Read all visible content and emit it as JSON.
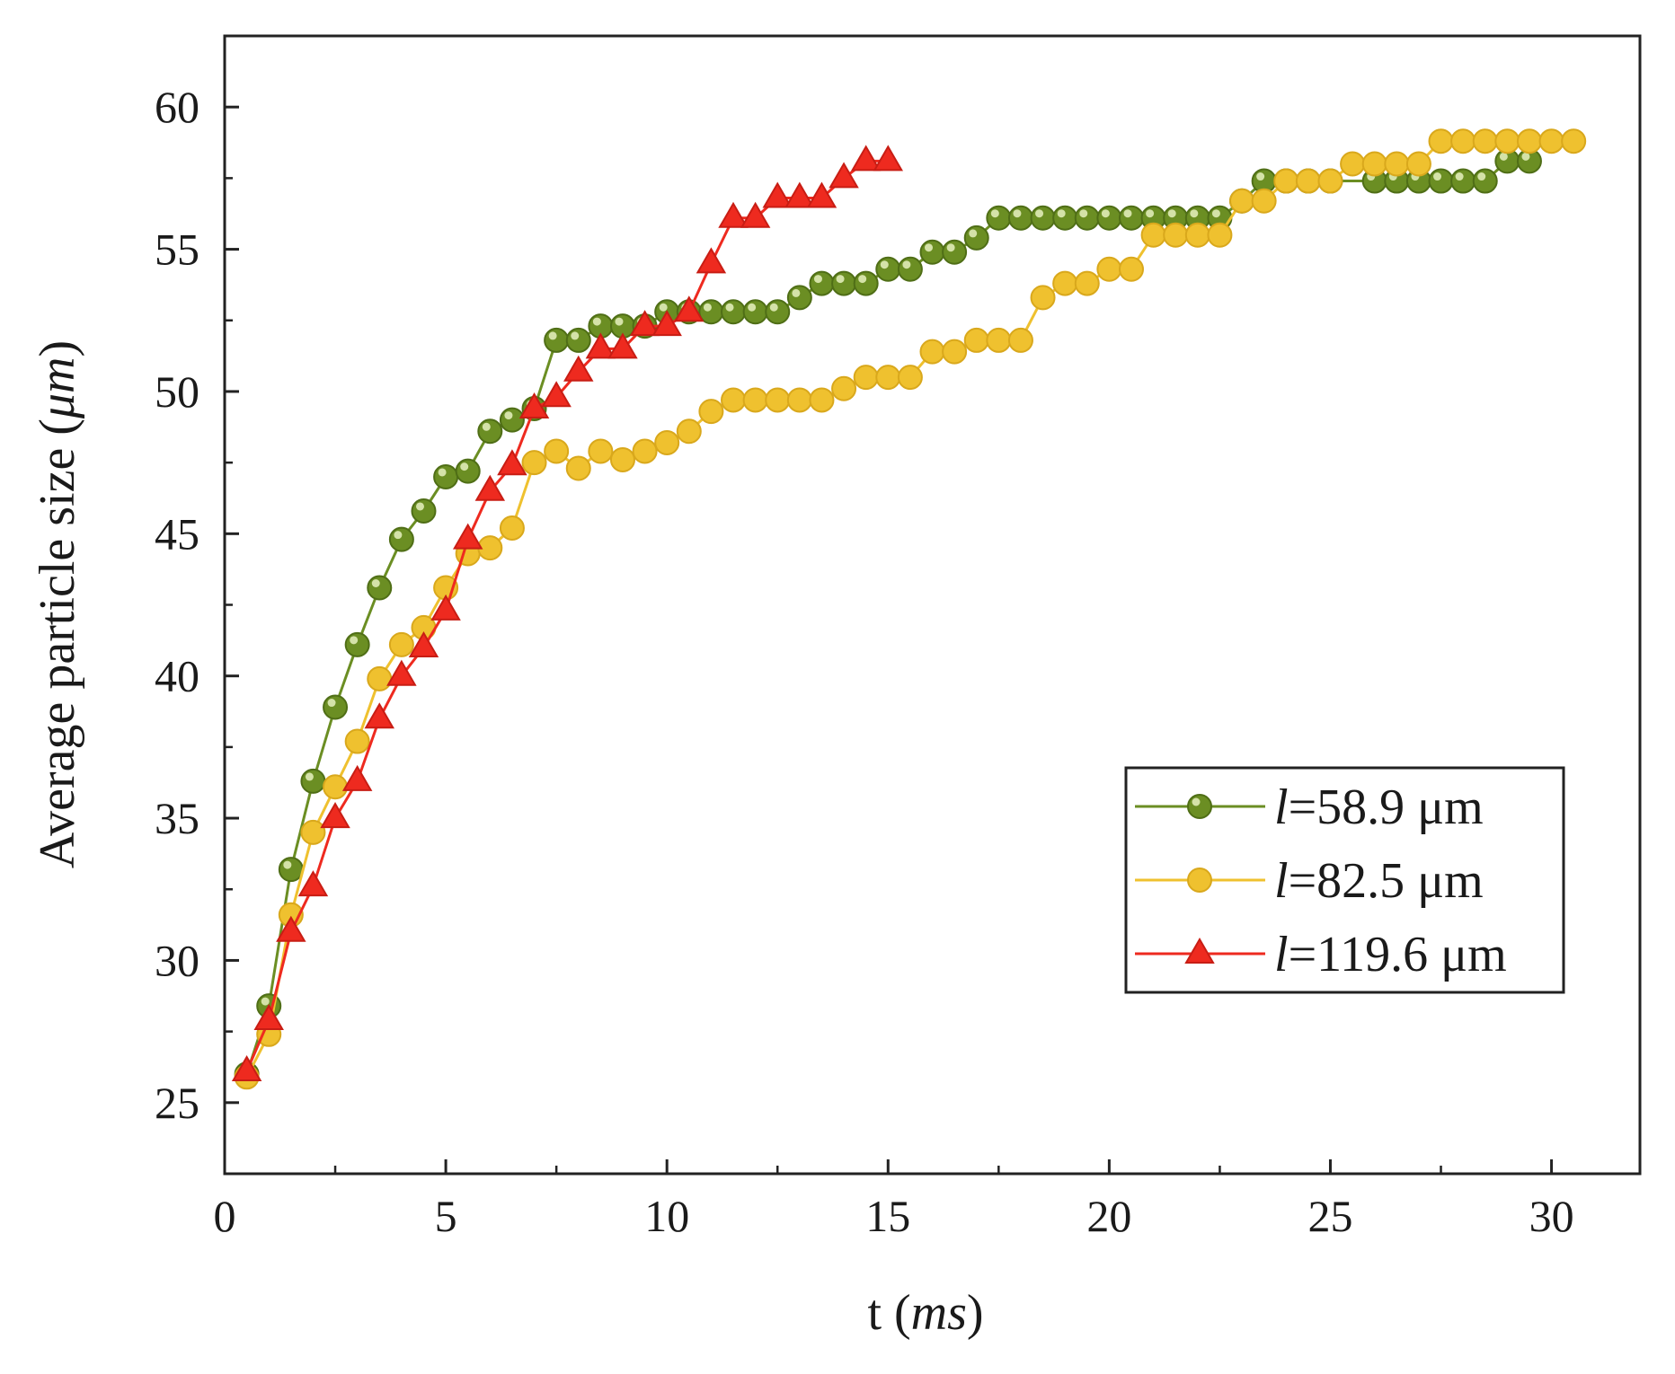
{
  "chart_data": {
    "type": "line",
    "title": "",
    "xlabel": "t (ms)",
    "xlabel_parts": {
      "text": "t (",
      "italic": "ms",
      "close": ")"
    },
    "ylabel": "Average particle size (μm)",
    "ylabel_parts": {
      "text": "Average particle size (",
      "italic": "μm",
      "close": ")"
    },
    "xlim": [
      0,
      32
    ],
    "ylim": [
      22.5,
      62.5
    ],
    "xticks": [
      0,
      5,
      10,
      15,
      20,
      25,
      30
    ],
    "yticks": [
      25,
      30,
      35,
      40,
      45,
      50,
      55,
      60
    ],
    "x_minor_step": 2.5,
    "y_minor_step": 2.5,
    "grid": false,
    "legend_position": "lower-right",
    "series": [
      {
        "name": "l=58.9 μm",
        "legend_prefix": "l",
        "legend_suffix": "=58.9 μm",
        "color": "#6b8e23",
        "marker": "circle",
        "x": [
          0.5,
          1.0,
          1.5,
          2.0,
          2.5,
          3.0,
          3.5,
          4.0,
          4.5,
          5.0,
          5.5,
          6.0,
          6.5,
          7.0,
          7.5,
          8.0,
          8.5,
          9.0,
          9.5,
          10.0,
          10.5,
          11.0,
          11.5,
          12.0,
          12.5,
          13.0,
          13.5,
          14.0,
          14.5,
          15.0,
          15.5,
          16.0,
          16.5,
          17.0,
          17.5,
          18.0,
          18.5,
          19.0,
          19.5,
          20.0,
          20.5,
          21.0,
          21.5,
          22.0,
          22.5,
          23.0,
          23.5,
          24.0,
          24.5,
          25.0,
          26.0,
          26.5,
          27.0,
          27.5,
          28.0,
          28.5,
          29.0,
          29.5
        ],
        "values": [
          26.0,
          28.4,
          33.2,
          36.3,
          38.9,
          41.1,
          43.1,
          44.8,
          45.8,
          47.0,
          47.2,
          48.6,
          49.0,
          49.4,
          51.8,
          51.8,
          52.3,
          52.3,
          52.3,
          52.8,
          52.8,
          52.8,
          52.8,
          52.8,
          52.8,
          53.3,
          53.8,
          53.8,
          53.8,
          54.3,
          54.3,
          54.9,
          54.9,
          55.4,
          56.1,
          56.1,
          56.1,
          56.1,
          56.1,
          56.1,
          56.1,
          56.1,
          56.1,
          56.1,
          56.1,
          56.7,
          57.4,
          57.4,
          57.4,
          57.4,
          57.4,
          57.4,
          57.4,
          57.4,
          57.4,
          57.4,
          58.1,
          58.1
        ]
      },
      {
        "name": "l=82.5 μm",
        "legend_prefix": "l",
        "legend_suffix": "=82.5 μm",
        "color": "#efc12f",
        "marker": "circle",
        "x": [
          0.5,
          1.0,
          1.5,
          2.0,
          2.5,
          3.0,
          3.5,
          4.0,
          4.5,
          5.0,
          5.5,
          6.0,
          6.5,
          7.0,
          7.5,
          8.0,
          8.5,
          9.0,
          9.5,
          10.0,
          10.5,
          11.0,
          11.5,
          12.0,
          12.5,
          13.0,
          13.5,
          14.0,
          14.5,
          15.0,
          15.5,
          16.0,
          16.5,
          17.0,
          17.5,
          18.0,
          18.5,
          19.0,
          19.5,
          20.0,
          20.5,
          21.0,
          21.5,
          22.0,
          22.5,
          23.0,
          23.5,
          24.0,
          24.5,
          25.0,
          25.5,
          26.0,
          26.5,
          27.0,
          27.5,
          28.0,
          28.5,
          29.0,
          29.5,
          30.0,
          30.5
        ],
        "values": [
          25.9,
          27.4,
          31.6,
          34.5,
          36.1,
          37.7,
          39.9,
          41.1,
          41.7,
          43.1,
          44.3,
          44.5,
          45.2,
          47.5,
          47.9,
          47.3,
          47.9,
          47.6,
          47.9,
          48.2,
          48.6,
          49.3,
          49.7,
          49.7,
          49.7,
          49.7,
          49.7,
          50.1,
          50.5,
          50.5,
          50.5,
          51.4,
          51.4,
          51.8,
          51.8,
          51.8,
          53.3,
          53.8,
          53.8,
          54.3,
          54.3,
          55.5,
          55.5,
          55.5,
          55.5,
          56.7,
          56.7,
          57.4,
          57.4,
          57.4,
          58.0,
          58.0,
          58.0,
          58.0,
          58.8,
          58.8,
          58.8,
          58.8,
          58.8,
          58.8,
          58.8
        ]
      },
      {
        "name": "l=119.6 μm",
        "legend_prefix": "l",
        "legend_suffix": "=119.6 μm",
        "color": "#ee2a1f",
        "marker": "triangle",
        "x": [
          0.5,
          1.0,
          1.5,
          2.0,
          2.5,
          3.0,
          3.5,
          4.0,
          4.5,
          5.0,
          5.5,
          6.0,
          6.5,
          7.0,
          7.5,
          8.0,
          8.5,
          9.0,
          9.5,
          10.0,
          10.5,
          11.0,
          11.5,
          12.0,
          12.5,
          13.0,
          13.5,
          14.0,
          14.5,
          15.0
        ],
        "values": [
          26.1,
          27.9,
          31.0,
          32.6,
          35.0,
          36.3,
          38.5,
          40.0,
          41.0,
          42.3,
          44.8,
          46.5,
          47.4,
          49.4,
          49.8,
          50.7,
          51.5,
          51.5,
          52.3,
          52.3,
          52.8,
          54.5,
          56.1,
          56.1,
          56.8,
          56.8,
          56.8,
          57.5,
          58.1,
          58.1
        ]
      }
    ]
  }
}
